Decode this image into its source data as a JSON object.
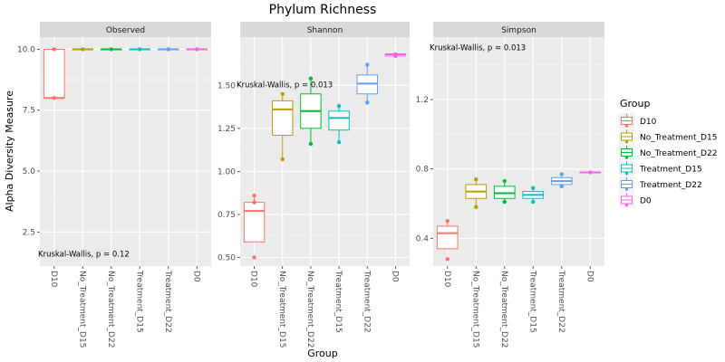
{
  "chart_data": {
    "type": "box",
    "title": "Phylum Richness",
    "xlabel": "Group",
    "ylabel": "Alpha Diversity Measure",
    "categories": [
      "D10",
      "No_Treatment_D15",
      "No_Treatment_D22",
      "Treatment_D15",
      "Treatment_D22",
      "D0"
    ],
    "colors": {
      "D10": "#F8766D",
      "No_Treatment_D15": "#B79F00",
      "No_Treatment_D22": "#00BA38",
      "Treatment_D15": "#00BFC4",
      "Treatment_D22": "#619CFF",
      "D0": "#F564E3"
    },
    "legend": {
      "title": "Group",
      "position": "right",
      "entries": [
        "D10",
        "No_Treatment_D15",
        "No_Treatment_D22",
        "Treatment_D15",
        "Treatment_D22",
        "D0"
      ]
    },
    "facets": [
      {
        "name": "Observed",
        "ylim": [
          1.1,
          10.5
        ],
        "yticks": [
          2.5,
          5.0,
          7.5,
          10.0
        ],
        "ytick_labels": [
          "2.5",
          "5.0",
          "7.5",
          "10.0"
        ],
        "annotation": "Kruskal-Wallis, p = 0.12",
        "annotation_pos": "bottom-left",
        "annotation_y": 1.6,
        "boxes": [
          {
            "group": "D10",
            "min": 8,
            "q1": 8,
            "median": 8,
            "q3": 10,
            "max": 10,
            "points": [
              8,
              10
            ]
          },
          {
            "group": "No_Treatment_D15",
            "min": 10,
            "q1": 10,
            "median": 10,
            "q3": 10,
            "max": 10,
            "points": [
              10
            ]
          },
          {
            "group": "No_Treatment_D22",
            "min": 10,
            "q1": 10,
            "median": 10,
            "q3": 10,
            "max": 10,
            "points": [
              10
            ]
          },
          {
            "group": "Treatment_D15",
            "min": 10,
            "q1": 10,
            "median": 10,
            "q3": 10,
            "max": 10,
            "points": [
              10
            ]
          },
          {
            "group": "Treatment_D22",
            "min": 10,
            "q1": 10,
            "median": 10,
            "q3": 10,
            "max": 10,
            "points": [
              10
            ]
          },
          {
            "group": "D0",
            "min": 10,
            "q1": 10,
            "median": 10,
            "q3": 10,
            "max": 10,
            "points": [
              10
            ]
          }
        ]
      },
      {
        "name": "Shannon",
        "ylim": [
          0.45,
          1.78
        ],
        "yticks": [
          0.5,
          0.75,
          1.0,
          1.25,
          1.5
        ],
        "ytick_labels": [
          "0.50",
          "0.75",
          "1.00",
          "1.25",
          "1.50"
        ],
        "annotation": "Kruskal-Wallis, p = 0.013",
        "annotation_pos": "left",
        "annotation_y": 1.505,
        "boxes": [
          {
            "group": "D10",
            "min": 0.59,
            "q1": 0.59,
            "median": 0.77,
            "q3": 0.82,
            "max": 0.86,
            "points": [
              0.5,
              0.86,
              0.82
            ]
          },
          {
            "group": "No_Treatment_D15",
            "min": 1.07,
            "q1": 1.21,
            "median": 1.36,
            "q3": 1.41,
            "max": 1.45,
            "points": [
              1.07,
              1.45
            ]
          },
          {
            "group": "No_Treatment_D22",
            "min": 1.16,
            "q1": 1.25,
            "median": 1.35,
            "q3": 1.45,
            "max": 1.54,
            "points": [
              1.16,
              1.54
            ]
          },
          {
            "group": "Treatment_D15",
            "min": 1.17,
            "q1": 1.24,
            "median": 1.31,
            "q3": 1.35,
            "max": 1.38,
            "points": [
              1.17,
              1.38
            ]
          },
          {
            "group": "Treatment_D22",
            "min": 1.4,
            "q1": 1.45,
            "median": 1.51,
            "q3": 1.56,
            "max": 1.62,
            "points": [
              1.4,
              1.62
            ]
          },
          {
            "group": "D0",
            "min": 1.67,
            "q1": 1.67,
            "median": 1.68,
            "q3": 1.68,
            "max": 1.68,
            "points": [
              1.67,
              1.68
            ]
          }
        ]
      },
      {
        "name": "Simpson",
        "ylim": [
          0.24,
          1.56
        ],
        "yticks": [
          0.4,
          0.8,
          1.2
        ],
        "ytick_labels": [
          "0.4",
          "0.8",
          "1.2"
        ],
        "annotation": "Kruskal-Wallis, p = 0.013",
        "annotation_pos": "top-left",
        "annotation_y": 1.5,
        "boxes": [
          {
            "group": "D10",
            "min": 0.34,
            "q1": 0.34,
            "median": 0.43,
            "q3": 0.47,
            "max": 0.5,
            "points": [
              0.28,
              0.5
            ]
          },
          {
            "group": "No_Treatment_D15",
            "min": 0.58,
            "q1": 0.63,
            "median": 0.67,
            "q3": 0.71,
            "max": 0.74,
            "points": [
              0.58,
              0.74
            ]
          },
          {
            "group": "No_Treatment_D22",
            "min": 0.61,
            "q1": 0.63,
            "median": 0.66,
            "q3": 0.7,
            "max": 0.73,
            "points": [
              0.61,
              0.73
            ]
          },
          {
            "group": "Treatment_D15",
            "min": 0.61,
            "q1": 0.63,
            "median": 0.65,
            "q3": 0.67,
            "max": 0.69,
            "points": [
              0.61,
              0.69
            ]
          },
          {
            "group": "Treatment_D22",
            "min": 0.7,
            "q1": 0.71,
            "median": 0.73,
            "q3": 0.75,
            "max": 0.77,
            "points": [
              0.7,
              0.77
            ]
          },
          {
            "group": "D0",
            "min": 0.78,
            "q1": 0.78,
            "median": 0.78,
            "q3": 0.78,
            "max": 0.78,
            "points": [
              0.78
            ]
          }
        ]
      }
    ],
    "grid": true
  }
}
